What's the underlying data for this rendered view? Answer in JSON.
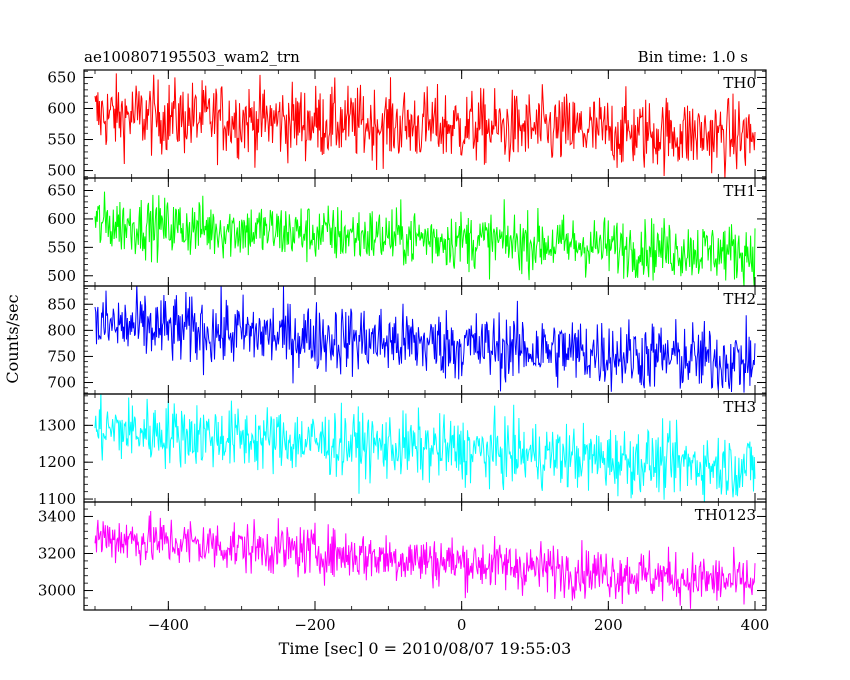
{
  "header": {
    "title": "ae100807195503_wam2_trn",
    "bin_time": "Bin time: 1.0 s"
  },
  "chart_data": {
    "type": "line",
    "xlabel": "Time [sec] 0 = 2010/08/07 19:55:03",
    "ylabel": "Counts/sec",
    "xlim": [
      -515,
      415
    ],
    "x_ticks": [
      -400,
      -200,
      0,
      200,
      400
    ],
    "x_tick_labels": [
      "−400",
      "−200",
      "0",
      "200",
      "400"
    ],
    "x_range": [
      -500,
      400
    ],
    "bin_time_s": 1.0,
    "panels": [
      {
        "name": "TH0",
        "color": "#ff0000",
        "ylim": [
          488,
          662
        ],
        "yticks": [
          500,
          550,
          600,
          650
        ],
        "start": 590,
        "end": 555,
        "noise": 30
      },
      {
        "name": "TH1",
        "color": "#00ff00",
        "ylim": [
          482,
          672
        ],
        "yticks": [
          500,
          550,
          600,
          650
        ],
        "start": 592,
        "end": 540,
        "noise": 26
      },
      {
        "name": "TH2",
        "color": "#0000ff",
        "ylim": [
          678,
          885
        ],
        "yticks": [
          700,
          750,
          800,
          850
        ],
        "start": 810,
        "end": 740,
        "noise": 34
      },
      {
        "name": "TH3",
        "color": "#00ffff",
        "ylim": [
          1092,
          1385
        ],
        "yticks": [
          1100,
          1200,
          1300
        ],
        "start": 1290,
        "end": 1185,
        "noise": 45
      },
      {
        "name": "TH0123",
        "color": "#ff00ff",
        "ylim": [
          2895,
          3478
        ],
        "yticks": [
          3000,
          3200,
          3400
        ],
        "start": 3290,
        "end": 3040,
        "noise": 70
      }
    ]
  }
}
